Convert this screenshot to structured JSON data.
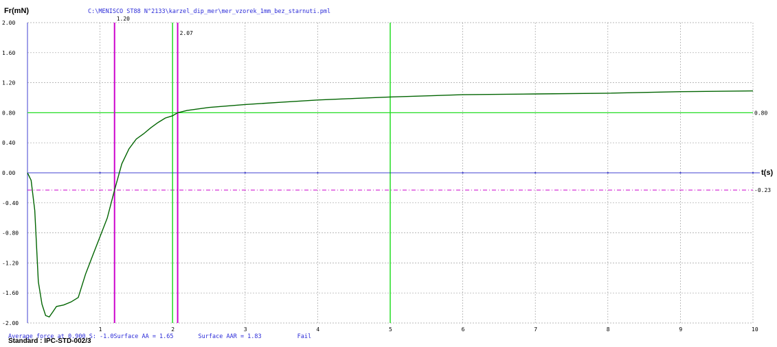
{
  "header": {
    "y_axis_title": "Fr(mN)",
    "x_axis_title": "t(s)",
    "file_path": "C:\\MENISCO ST88 N°2133\\karzel_dip_mer\\mer_vzorek_1mm_bez_starnuti.pml"
  },
  "footer": {
    "average_force": "Average force at 0.900 S: -1.0",
    "surface_aa": "Surface AA = 1.65",
    "surface_aar": "Surface AAR = 1.83",
    "result": "Fail",
    "standard": "Standard : IPC-STD-002/3"
  },
  "colors": {
    "curve": "#006400",
    "axis_blue": "#4040d0",
    "grid": "#a0a0a0",
    "marker_magenta": "#cc00cc",
    "marker_green": "#22dd22",
    "text_blue": "#2a2ad8"
  },
  "chart_data": {
    "type": "line",
    "xlabel": "t(s)",
    "ylabel": "Fr(mN)",
    "xlim": [
      0,
      10
    ],
    "ylim": [
      -2.0,
      2.0
    ],
    "x_ticks": [
      "1",
      "2",
      "3",
      "4",
      "5",
      "6",
      "7",
      "8",
      "9",
      "10"
    ],
    "y_ticks": [
      "2.00",
      "1.60",
      "1.20",
      "0.80",
      "0.40",
      "0.00",
      "-0.40",
      "-0.80",
      "-1.20",
      "-1.60",
      "-2.00"
    ],
    "grid": true,
    "series": [
      {
        "x": [
          0.0,
          0.05,
          0.1,
          0.15,
          0.2,
          0.25,
          0.3,
          0.35,
          0.4,
          0.5,
          0.6,
          0.7,
          0.8,
          0.9,
          1.0,
          1.1,
          1.2,
          1.3,
          1.4,
          1.5,
          1.6,
          1.7,
          1.8,
          1.9,
          2.0,
          2.07,
          2.2,
          2.5,
          3.0,
          3.5,
          4.0,
          4.5,
          5.0,
          6.0,
          7.0,
          8.0,
          9.0,
          10.0
        ],
        "y": [
          0.0,
          -0.1,
          -0.5,
          -1.45,
          -1.75,
          -1.9,
          -1.92,
          -1.85,
          -1.78,
          -1.76,
          -1.72,
          -1.66,
          -1.35,
          -1.1,
          -0.85,
          -0.6,
          -0.23,
          0.12,
          0.32,
          0.45,
          0.52,
          0.6,
          0.67,
          0.73,
          0.76,
          0.8,
          0.83,
          0.87,
          0.91,
          0.94,
          0.97,
          0.99,
          1.01,
          1.04,
          1.05,
          1.06,
          1.08,
          1.09
        ]
      }
    ],
    "markers": {
      "vertical_magenta": [
        {
          "x": 1.2,
          "label": "1.20"
        },
        {
          "x": 2.07,
          "label": "2.07"
        }
      ],
      "vertical_green": [
        {
          "x": 2.0
        },
        {
          "x": 5.0
        }
      ],
      "horizontal_green": {
        "y": 0.8,
        "label": "0.80"
      },
      "horizontal_magenta_dashdot": {
        "y": -0.23,
        "label": "-0.23"
      }
    }
  }
}
